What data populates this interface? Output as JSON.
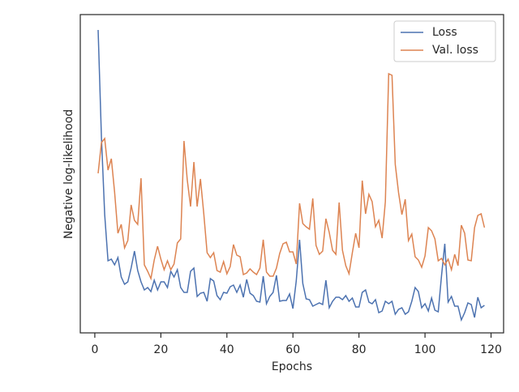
{
  "chart_data": {
    "type": "line",
    "xlabel": "Epochs",
    "ylabel": "Negative log-likelihood",
    "x": [
      1,
      2,
      3,
      4,
      5,
      6,
      7,
      8,
      9,
      10,
      11,
      12,
      13,
      14,
      15,
      16,
      17,
      18,
      19,
      20,
      21,
      22,
      23,
      24,
      25,
      26,
      27,
      28,
      29,
      30,
      31,
      32,
      33,
      34,
      35,
      36,
      37,
      38,
      39,
      40,
      41,
      42,
      43,
      44,
      45,
      46,
      47,
      48,
      49,
      50,
      51,
      52,
      53,
      54,
      55,
      56,
      57,
      58,
      59,
      60,
      61,
      62,
      63,
      64,
      65,
      66,
      67,
      68,
      69,
      70,
      71,
      72,
      73,
      74,
      75,
      76,
      77,
      78,
      79,
      80,
      81,
      82,
      83,
      84,
      85,
      86,
      87,
      88,
      89,
      90,
      91,
      92,
      93,
      94,
      95,
      96,
      97,
      98,
      99,
      100,
      101,
      102,
      103,
      104,
      105,
      106,
      107,
      108,
      109,
      110,
      111,
      112,
      113,
      114,
      115,
      116,
      117,
      118
    ],
    "series": [
      {
        "name": "Loss",
        "color": "#4c72b0",
        "values": [
          374,
          241,
          146,
          89,
          91,
          84,
          93,
          69,
          60,
          63,
          80,
          101,
          77,
          63,
          53,
          56,
          51,
          65,
          53,
          63,
          63,
          56,
          76,
          69,
          78,
          56,
          50,
          50,
          76,
          80,
          45,
          49,
          50,
          39,
          67,
          64,
          46,
          41,
          50,
          49,
          57,
          59,
          50,
          59,
          44,
          66,
          49,
          46,
          39,
          38,
          70,
          36,
          45,
          50,
          71,
          39,
          40,
          40,
          48,
          30,
          64,
          115,
          61,
          42,
          41,
          33,
          35,
          37,
          35,
          65,
          31,
          39,
          44,
          44,
          41,
          46,
          39,
          43,
          32,
          32,
          50,
          53,
          38,
          36,
          41,
          25,
          27,
          39,
          36,
          39,
          23,
          29,
          31,
          23,
          26,
          39,
          56,
          51,
          31,
          36,
          27,
          43,
          28,
          26,
          71,
          110,
          38,
          45,
          33,
          33,
          16,
          25,
          37,
          35,
          19,
          44,
          31,
          34
        ]
      },
      {
        "name": "Val. loss",
        "color": "#dd8452",
        "values": [
          197,
          235,
          240,
          201,
          215,
          174,
          123,
          134,
          105,
          114,
          158,
          139,
          134,
          191,
          84,
          76,
          67,
          90,
          107,
          91,
          78,
          89,
          78,
          85,
          111,
          116,
          237,
          189,
          156,
          211,
          156,
          190,
          147,
          99,
          93,
          99,
          77,
          75,
          88,
          73,
          82,
          109,
          96,
          94,
          72,
          74,
          79,
          75,
          72,
          80,
          115,
          75,
          70,
          70,
          80,
          98,
          110,
          112,
          100,
          100,
          85,
          160,
          135,
          131,
          128,
          166,
          108,
          97,
          101,
          141,
          124,
          102,
          97,
          161,
          102,
          83,
          73,
          99,
          123,
          105,
          188,
          147,
          171,
          162,
          131,
          139,
          117,
          162,
          320,
          318,
          208,
          173,
          146,
          165,
          114,
          122,
          94,
          90,
          81,
          95,
          130,
          126,
          116,
          89,
          92,
          84,
          91,
          78,
          97,
          83,
          133,
          123,
          90,
          89,
          130,
          145,
          147,
          130
        ]
      }
    ],
    "xlim": [
      -4.4,
      123.8
    ],
    "xticks": [
      0,
      20,
      40,
      60,
      80,
      100,
      120
    ],
    "ylim": [
      0,
      393
    ],
    "legend": "upper right"
  }
}
